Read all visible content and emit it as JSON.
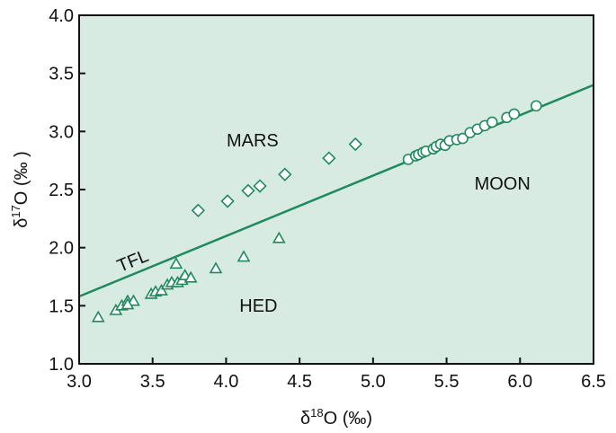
{
  "chart_data": {
    "type": "scatter",
    "xlabel": {
      "main": "δ",
      "sup": "18",
      "rest": "O (‰)"
    },
    "ylabel": {
      "main": "δ",
      "sup": "17",
      "rest": "O (‰ )"
    },
    "xlim": [
      3.0,
      6.5
    ],
    "ylim": [
      1.0,
      4.0
    ],
    "x_ticks": [
      "3.0",
      "3.5",
      "4.0",
      "4.5",
      "5.0",
      "5.5",
      "6.0",
      "6.5"
    ],
    "y_ticks": [
      "1.0",
      "1.5",
      "2.0",
      "2.5",
      "3.0",
      "3.5",
      "4.0"
    ],
    "grid": false,
    "background_color": "#d8ebe3",
    "marker_color": "#1f8a5c",
    "line": {
      "name": "TFL",
      "points": [
        [
          3.0,
          1.58
        ],
        [
          6.5,
          3.4
        ]
      ]
    },
    "series": [
      {
        "name": "MARS",
        "marker": "diamond",
        "points": [
          [
            3.81,
            2.32
          ],
          [
            4.01,
            2.4
          ],
          [
            4.15,
            2.49
          ],
          [
            4.23,
            2.53
          ],
          [
            4.4,
            2.63
          ],
          [
            4.7,
            2.77
          ],
          [
            4.88,
            2.89
          ]
        ]
      },
      {
        "name": "HED",
        "marker": "triangle",
        "points": [
          [
            3.13,
            1.4
          ],
          [
            3.25,
            1.46
          ],
          [
            3.29,
            1.5
          ],
          [
            3.33,
            1.54
          ],
          [
            3.37,
            1.54
          ],
          [
            3.33,
            1.51
          ],
          [
            3.49,
            1.6
          ],
          [
            3.52,
            1.62
          ],
          [
            3.56,
            1.63
          ],
          [
            3.6,
            1.68
          ],
          [
            3.63,
            1.7
          ],
          [
            3.67,
            1.7
          ],
          [
            3.7,
            1.72
          ],
          [
            3.72,
            1.76
          ],
          [
            3.76,
            1.74
          ],
          [
            3.66,
            1.86
          ],
          [
            3.93,
            1.82
          ],
          [
            4.12,
            1.92
          ],
          [
            4.36,
            2.08
          ]
        ]
      },
      {
        "name": "MOON",
        "marker": "circle",
        "points": [
          [
            5.24,
            2.76
          ],
          [
            5.29,
            2.79
          ],
          [
            5.31,
            2.8
          ],
          [
            5.34,
            2.82
          ],
          [
            5.36,
            2.83
          ],
          [
            5.41,
            2.85
          ],
          [
            5.43,
            2.87
          ],
          [
            5.46,
            2.89
          ],
          [
            5.49,
            2.88
          ],
          [
            5.52,
            2.92
          ],
          [
            5.57,
            2.93
          ],
          [
            5.61,
            2.94
          ],
          [
            5.66,
            2.99
          ],
          [
            5.71,
            3.02
          ],
          [
            5.76,
            3.05
          ],
          [
            5.81,
            3.08
          ],
          [
            5.91,
            3.12
          ],
          [
            5.96,
            3.15
          ],
          [
            6.11,
            3.22
          ]
        ]
      }
    ],
    "annotations": [
      {
        "text": "MARS",
        "x": 4.18,
        "y": 2.87
      },
      {
        "text": "MOON",
        "x": 5.88,
        "y": 2.5
      },
      {
        "text": "HED",
        "x": 4.22,
        "y": 1.45
      },
      {
        "text": "TFL",
        "x": 3.38,
        "y": 1.84,
        "rotate": true
      }
    ]
  }
}
